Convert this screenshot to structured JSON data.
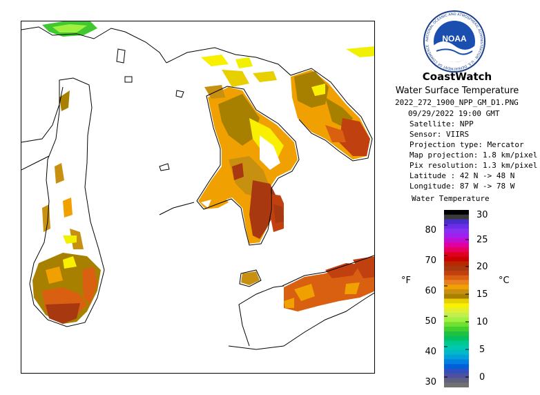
{
  "header": {
    "title": "CoastWatch",
    "subtitle": "Water Surface Temperature",
    "filename": "2022_272_1900_NPP_GM_D1.PNG",
    "datetime": "09/29/2022    19:00 GMT"
  },
  "metadata": [
    "Satellite: NPP",
    "Sensor: VIIRS",
    "Projection type:  Mercator",
    "Map projection: 1.8 km/pixel",
    "Pix resolution: 1.3 km/pixel",
    "Latitude : 42 N -> 48 N",
    "Longitude: 87 W -> 78 W"
  ],
  "legend": {
    "title": "Water Temperature",
    "unit_f": "°F",
    "unit_c": "°C",
    "fahrenheit_ticks": [
      "80",
      "70",
      "60",
      "50",
      "40",
      "30"
    ],
    "celsius_ticks": [
      "30",
      "25",
      "20",
      "15",
      "10",
      "5",
      "0"
    ],
    "colors": [
      "#000000",
      "#3a3a3a",
      "#4a2cc8",
      "#6a2ee8",
      "#8a2ef0",
      "#a01ff0",
      "#c00fd0",
      "#e000a0",
      "#e80060",
      "#e00020",
      "#c80000",
      "#b82800",
      "#a83810",
      "#c04010",
      "#d86010",
      "#e88020",
      "#f0a000",
      "#c89010",
      "#a88000",
      "#e8d000",
      "#f8f000",
      "#e0f030",
      "#c0f050",
      "#a0f040",
      "#70e030",
      "#40d030",
      "#20c040",
      "#00c060",
      "#00c890",
      "#00c8b0",
      "#00b8c8",
      "#00a0d8",
      "#0080e0",
      "#0060d8",
      "#3050c0",
      "#5050a0",
      "#606080",
      "#707070"
    ]
  },
  "logo": {
    "text": "NOAA",
    "ring_text": "NATIONAL OCEANIC AND ATMOSPHERIC ADMINISTRATION · U.S. DEPARTMENT OF COMMERCE"
  },
  "map": {
    "lat_range": [
      "42 N",
      "48 N"
    ],
    "lon_range": [
      "87 W",
      "78 W"
    ]
  }
}
